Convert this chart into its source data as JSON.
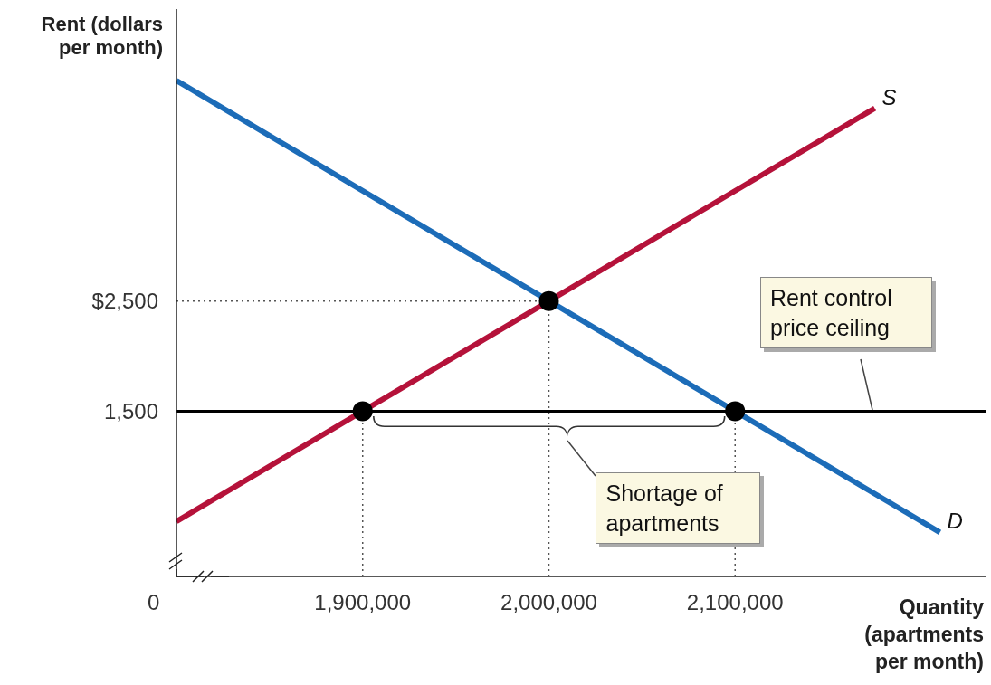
{
  "chart_data": {
    "type": "line",
    "xlabel": "Quantity (apartments per month)",
    "ylabel": "Rent (dollars per month)",
    "series": [
      {
        "name": "S",
        "color": "#b5123a",
        "x": [
          1800000,
          2175000
        ],
        "values": [
          500,
          4250
        ]
      },
      {
        "name": "D",
        "color": "#1c6cb8",
        "x": [
          1800000,
          2210000
        ],
        "values": [
          4500,
          400
        ]
      },
      {
        "type": "scatter",
        "marker": "circle",
        "color": "#000000",
        "x": [
          1900000,
          2000000,
          2100000
        ],
        "values": [
          1500,
          2500,
          1500
        ]
      }
    ],
    "xlim": [
      1800000,
      2235000
    ],
    "xticks": [
      {
        "value": 1900000,
        "label": "1,900,000"
      },
      {
        "value": 2000000,
        "label": "2,000,000"
      },
      {
        "value": 2100000,
        "label": "2,100,000"
      }
    ],
    "ylim": [
      0,
      5150
    ],
    "yticks": [
      {
        "value": 1500,
        "label": "1,500"
      },
      {
        "value": 2500,
        "label": "$2,500"
      }
    ],
    "ref_lines": [
      {
        "axis": "y",
        "value": 2500,
        "color": "#555555",
        "line_style": "dotted"
      },
      {
        "axis": "x",
        "value": 1900000,
        "color": "#555555",
        "line_style": "dotted"
      },
      {
        "axis": "x",
        "value": 2000000,
        "color": "#555555",
        "line_style": "dotted"
      },
      {
        "axis": "x",
        "value": 2100000,
        "color": "#555555",
        "line_style": "dotted"
      },
      {
        "axis": "y",
        "value": 1500,
        "label": "Rent control price ceiling",
        "color": "#000000",
        "line_style": "solid"
      }
    ],
    "annotations": [
      "0",
      "Shortage of apartments"
    ],
    "grid": false,
    "legend": false,
    "marker": "none",
    "line_style": "solid"
  }
}
